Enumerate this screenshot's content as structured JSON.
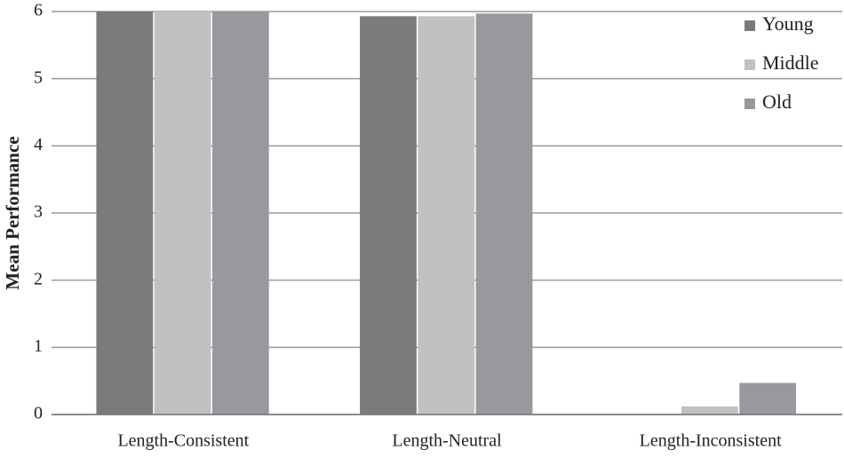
{
  "chart_data": {
    "type": "bar",
    "y_label": "Mean Performance",
    "categories": [
      "Length-Consistent",
      "Length-Neutral",
      "Length-Inconsistent"
    ],
    "series": [
      {
        "name": "Young",
        "color": "#7a7b7d",
        "values": [
          6,
          5.93,
          0
        ]
      },
      {
        "name": "Middle",
        "color": "#c0c1c3",
        "values": [
          6,
          5.93,
          0.12
        ]
      },
      {
        "name": "Old",
        "color": "#98999c",
        "values": [
          6,
          5.97,
          0.47
        ]
      }
    ],
    "ylim": [
      0,
      6
    ],
    "yticks": [
      0,
      1,
      2,
      3,
      4,
      5,
      6
    ],
    "grid": true,
    "legend": "top-right"
  }
}
